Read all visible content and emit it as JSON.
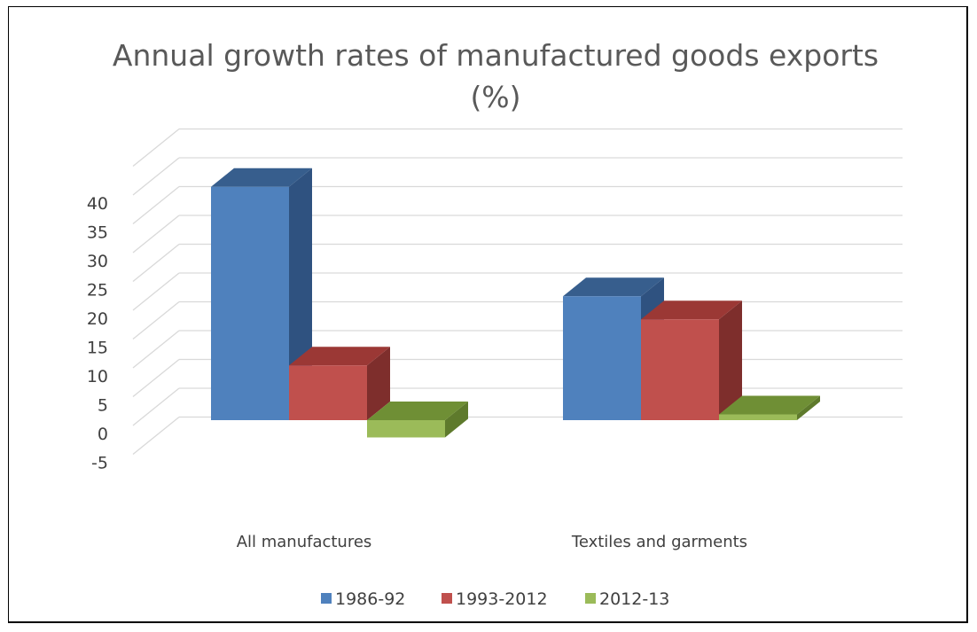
{
  "chart_data": {
    "type": "bar",
    "title": "Annual growth rates of manufactured goods exports",
    "subtitle": "(%)",
    "categories": [
      "All manufactures",
      "Textiles and garments"
    ],
    "series": [
      {
        "name": "1986-92",
        "values": [
          40.5,
          21.5
        ],
        "color": "#4F81BD",
        "top_color": "#375E8D",
        "side_color": "#2F5280"
      },
      {
        "name": "1993-2012",
        "values": [
          9.5,
          17.5
        ],
        "color": "#C0504D",
        "top_color": "#9B3835",
        "side_color": "#7E2E2C"
      },
      {
        "name": "2012-13",
        "values": [
          -3,
          1
        ],
        "color": "#9BBB59",
        "top_color": "#6F8F35",
        "side_color": "#5E7A2C"
      }
    ],
    "y_ticks": [
      "-5",
      "0",
      "5",
      "10",
      "15",
      "20",
      "25",
      "30",
      "35",
      "40"
    ],
    "ylim": [
      -5,
      40
    ],
    "grid": true,
    "legend_position": "bottom"
  }
}
